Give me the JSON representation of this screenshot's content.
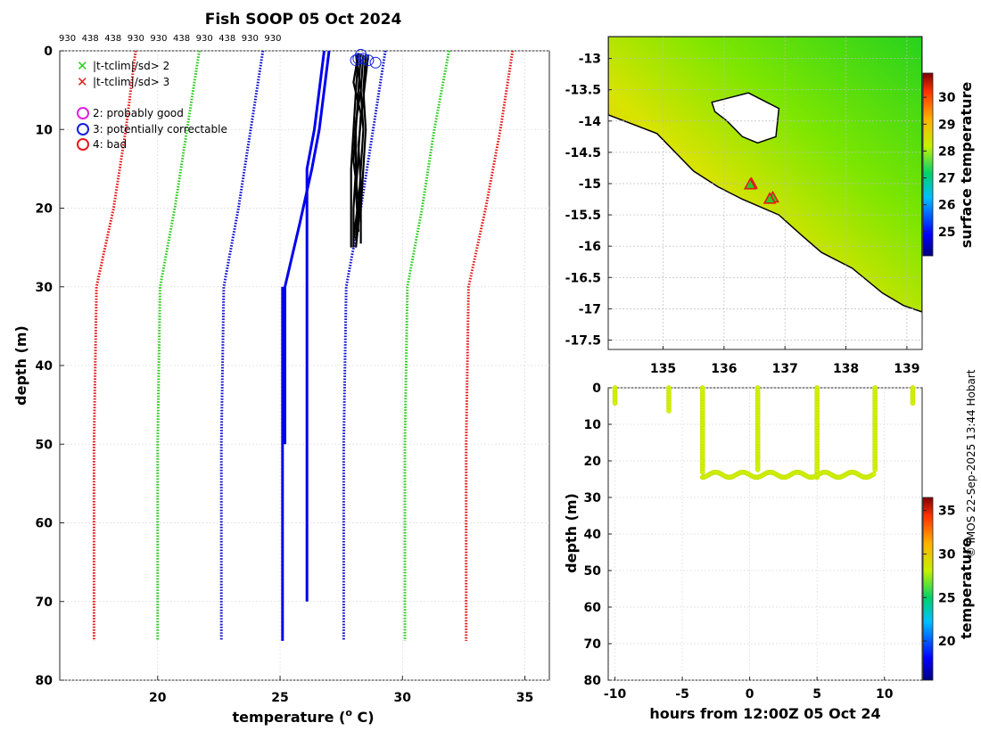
{
  "colors": {
    "clim_sd3": "#e41a1c",
    "clim_sd2": "#2ecc1f",
    "clim_sd1": "#1010d0",
    "mean": "#0000ee",
    "profile": "#000000",
    "point_fill": "#d4f200",
    "land": "#ffffff"
  },
  "chart_data": [
    {
      "id": "profile",
      "type": "line",
      "title": "Fish SOOP 05 Oct 2024",
      "xlabel": "temperature (",
      "xlabel_sup": "o",
      "xlabel_end": " C)",
      "ylabel": "depth (m)",
      "xlim": [
        16,
        36
      ],
      "ylim": [
        80,
        0
      ],
      "xticks": [
        20,
        25,
        30,
        35
      ],
      "yticks": [
        0,
        10,
        20,
        30,
        40,
        50,
        60,
        70,
        80
      ],
      "top_labels": [
        "930",
        "438",
        "438",
        "930",
        "930",
        "438",
        "930",
        "438",
        "930",
        "930"
      ],
      "legend": {
        "markers": [
          {
            "symbol": "x",
            "color": "#2ecc1f",
            "label": "|t-tclim|/sd> 2"
          },
          {
            "symbol": "x",
            "color": "#e41a1c",
            "label": "|t-tclim|/sd> 3"
          }
        ],
        "flags": [
          {
            "symbol": "o",
            "color": "#e020e0",
            "label": "2: probably good"
          },
          {
            "symbol": "o",
            "color": "#1020e0",
            "label": "3: potentially correctable"
          },
          {
            "symbol": "o",
            "color": "#e41a1c",
            "label": "4: bad"
          }
        ]
      },
      "climatology": [
        {
          "name": "-3sd",
          "color": "#e41a1c",
          "points": [
            [
              19.1,
              0
            ],
            [
              18.7,
              10
            ],
            [
              18.2,
              20
            ],
            [
              17.5,
              30
            ],
            [
              17.4,
              50
            ],
            [
              17.4,
              75
            ]
          ]
        },
        {
          "name": "-2sd",
          "color": "#2ecc1f",
          "points": [
            [
              21.7,
              0
            ],
            [
              21.2,
              10
            ],
            [
              20.7,
              20
            ],
            [
              20.1,
              30
            ],
            [
              20.0,
              50
            ],
            [
              20.0,
              75
            ]
          ]
        },
        {
          "name": "-1sd",
          "color": "#1010d0",
          "points": [
            [
              24.3,
              0
            ],
            [
              23.8,
              10
            ],
            [
              23.3,
              20
            ],
            [
              22.7,
              30
            ],
            [
              22.6,
              50
            ],
            [
              22.6,
              75
            ]
          ]
        },
        {
          "name": "+1sd",
          "color": "#1010d0",
          "points": [
            [
              29.3,
              0
            ],
            [
              28.8,
              10
            ],
            [
              28.3,
              20
            ],
            [
              27.7,
              30
            ],
            [
              27.6,
              50
            ],
            [
              27.6,
              75
            ]
          ]
        },
        {
          "name": "+2sd",
          "color": "#2ecc1f",
          "points": [
            [
              31.9,
              0
            ],
            [
              31.3,
              10
            ],
            [
              30.8,
              20
            ],
            [
              30.2,
              30
            ],
            [
              30.1,
              50
            ],
            [
              30.1,
              75
            ]
          ]
        },
        {
          "name": "+3sd",
          "color": "#e41a1c",
          "points": [
            [
              34.5,
              0
            ],
            [
              34.0,
              10
            ],
            [
              33.4,
              20
            ],
            [
              32.7,
              30
            ],
            [
              32.6,
              50
            ],
            [
              32.6,
              75
            ]
          ]
        }
      ],
      "mean_lines": [
        {
          "name": "mean-a",
          "points": [
            [
              27.0,
              0
            ],
            [
              26.6,
              10
            ],
            [
              26.3,
              15
            ],
            [
              25.8,
              22
            ],
            [
              25.2,
              30
            ],
            [
              25.2,
              50
            ]
          ]
        },
        {
          "name": "mean-b",
          "points": [
            [
              26.8,
              0
            ],
            [
              26.4,
              10
            ],
            [
              26.1,
              15
            ],
            [
              26.1,
              20
            ],
            [
              26.1,
              70
            ]
          ]
        },
        {
          "name": "mean-c",
          "points": [
            [
              25.1,
              30
            ],
            [
              25.1,
              75
            ]
          ]
        }
      ],
      "profiles": [
        {
          "points": [
            [
              28.2,
              0.5
            ],
            [
              28.1,
              5
            ],
            [
              28.0,
              10
            ],
            [
              27.9,
              15
            ],
            [
              27.9,
              20
            ],
            [
              27.9,
              25
            ]
          ]
        },
        {
          "points": [
            [
              28.3,
              0.5
            ],
            [
              28.2,
              5
            ],
            [
              28.1,
              10
            ],
            [
              28.1,
              15
            ],
            [
              28.0,
              20
            ],
            [
              28.0,
              25
            ]
          ]
        },
        {
          "points": [
            [
              28.4,
              0.5
            ],
            [
              28.3,
              5
            ],
            [
              28.4,
              10
            ],
            [
              28.3,
              15
            ],
            [
              28.2,
              20
            ],
            [
              28.1,
              24
            ]
          ]
        },
        {
          "points": [
            [
              28.5,
              0.5
            ],
            [
              28.4,
              5
            ],
            [
              28.5,
              10
            ],
            [
              28.4,
              15
            ],
            [
              28.3,
              20
            ],
            [
              28.3,
              24.5
            ]
          ]
        },
        {
          "points": [
            [
              28.2,
              0.3
            ],
            [
              28.0,
              4
            ],
            [
              28.3,
              8
            ],
            [
              28.2,
              13
            ],
            [
              28.1,
              18
            ],
            [
              28.2,
              23
            ]
          ]
        },
        {
          "points": [
            [
              28.6,
              0.5
            ],
            [
              28.4,
              6
            ],
            [
              28.2,
              12
            ],
            [
              28.3,
              17
            ],
            [
              28.2,
              22
            ],
            [
              28.1,
              25
            ]
          ]
        },
        {
          "points": [
            [
              28.1,
              0.5
            ],
            [
              28.3,
              5
            ],
            [
              28.1,
              9
            ],
            [
              28.0,
              14
            ],
            [
              28.2,
              19
            ],
            [
              28.0,
              24
            ]
          ]
        }
      ],
      "flag_circles": [
        [
          28.2,
          1.0
        ],
        [
          28.3,
          0.5
        ],
        [
          28.4,
          1.0
        ],
        [
          28.6,
          1.2
        ],
        [
          28.9,
          1.5
        ],
        [
          28.1,
          1.2
        ]
      ]
    },
    {
      "id": "map",
      "type": "heatmap",
      "xlim": [
        134.1,
        139.25
      ],
      "ylim": [
        -17.65,
        -12.65
      ],
      "xticks": [
        135,
        136,
        137,
        138,
        139
      ],
      "yticks": [
        -13,
        -13.5,
        -14,
        -14.5,
        -15,
        -15.5,
        -16,
        -16.5,
        -17,
        -17.5
      ],
      "yticklabels": [
        "-13",
        "-13.5",
        "-14",
        "-14.5",
        "-15",
        "-15.5",
        "-16",
        "-16.5",
        "-17",
        "-17.5"
      ],
      "colorbar": {
        "label": "surface temperature",
        "range": [
          24.1,
          30.9
        ],
        "ticks": [
          25,
          26,
          27,
          28,
          29,
          30
        ]
      },
      "stations": [
        [
          136.45,
          -15.0
        ],
        [
          136.8,
          -15.22
        ],
        [
          136.75,
          -15.24
        ],
        [
          136.43,
          -15.01
        ]
      ],
      "coast": [
        [
          134.1,
          -13.9
        ],
        [
          134.9,
          -14.2
        ],
        [
          135.5,
          -14.8
        ],
        [
          135.9,
          -15.05
        ],
        [
          136.3,
          -15.25
        ],
        [
          136.9,
          -15.5
        ],
        [
          137.3,
          -15.85
        ],
        [
          137.6,
          -16.1
        ],
        [
          138.1,
          -16.35
        ],
        [
          138.6,
          -16.75
        ],
        [
          138.95,
          -16.95
        ],
        [
          139.25,
          -17.05
        ]
      ],
      "island": [
        [
          135.8,
          -13.7
        ],
        [
          136.4,
          -13.55
        ],
        [
          136.9,
          -13.8
        ],
        [
          136.85,
          -14.25
        ],
        [
          136.55,
          -14.35
        ],
        [
          136.3,
          -14.25
        ],
        [
          136.05,
          -14.0
        ],
        [
          135.85,
          -13.85
        ]
      ]
    },
    {
      "id": "timeseries",
      "type": "scatter",
      "xlabel": "hours from 12:00Z 05 Oct 24",
      "ylabel": "depth (m)",
      "xlim": [
        -10.5,
        12.8
      ],
      "ylim": [
        80,
        0
      ],
      "xticks": [
        -10,
        -5,
        0,
        5,
        10
      ],
      "yticks": [
        0,
        10,
        20,
        30,
        40,
        50,
        60,
        70,
        80
      ],
      "colorbar": {
        "label": "temperature",
        "range": [
          15.5,
          36.5
        ],
        "ticks": [
          20,
          25,
          30,
          35
        ]
      },
      "casts": [
        {
          "t": -10.0,
          "max_depth": 4.5
        },
        {
          "t": -6.0,
          "max_depth": 6.5
        },
        {
          "t": -3.5,
          "max_depth": 23.5
        },
        {
          "t": 0.6,
          "max_depth": 23.0
        },
        {
          "t": 5.0,
          "max_depth": 24.5
        },
        {
          "t": 9.3,
          "max_depth": 23.0
        },
        {
          "t": 12.1,
          "max_depth": 4.5
        }
      ]
    }
  ],
  "credit": "© IMOS 22-Sep-2025 13:44 Hobart"
}
